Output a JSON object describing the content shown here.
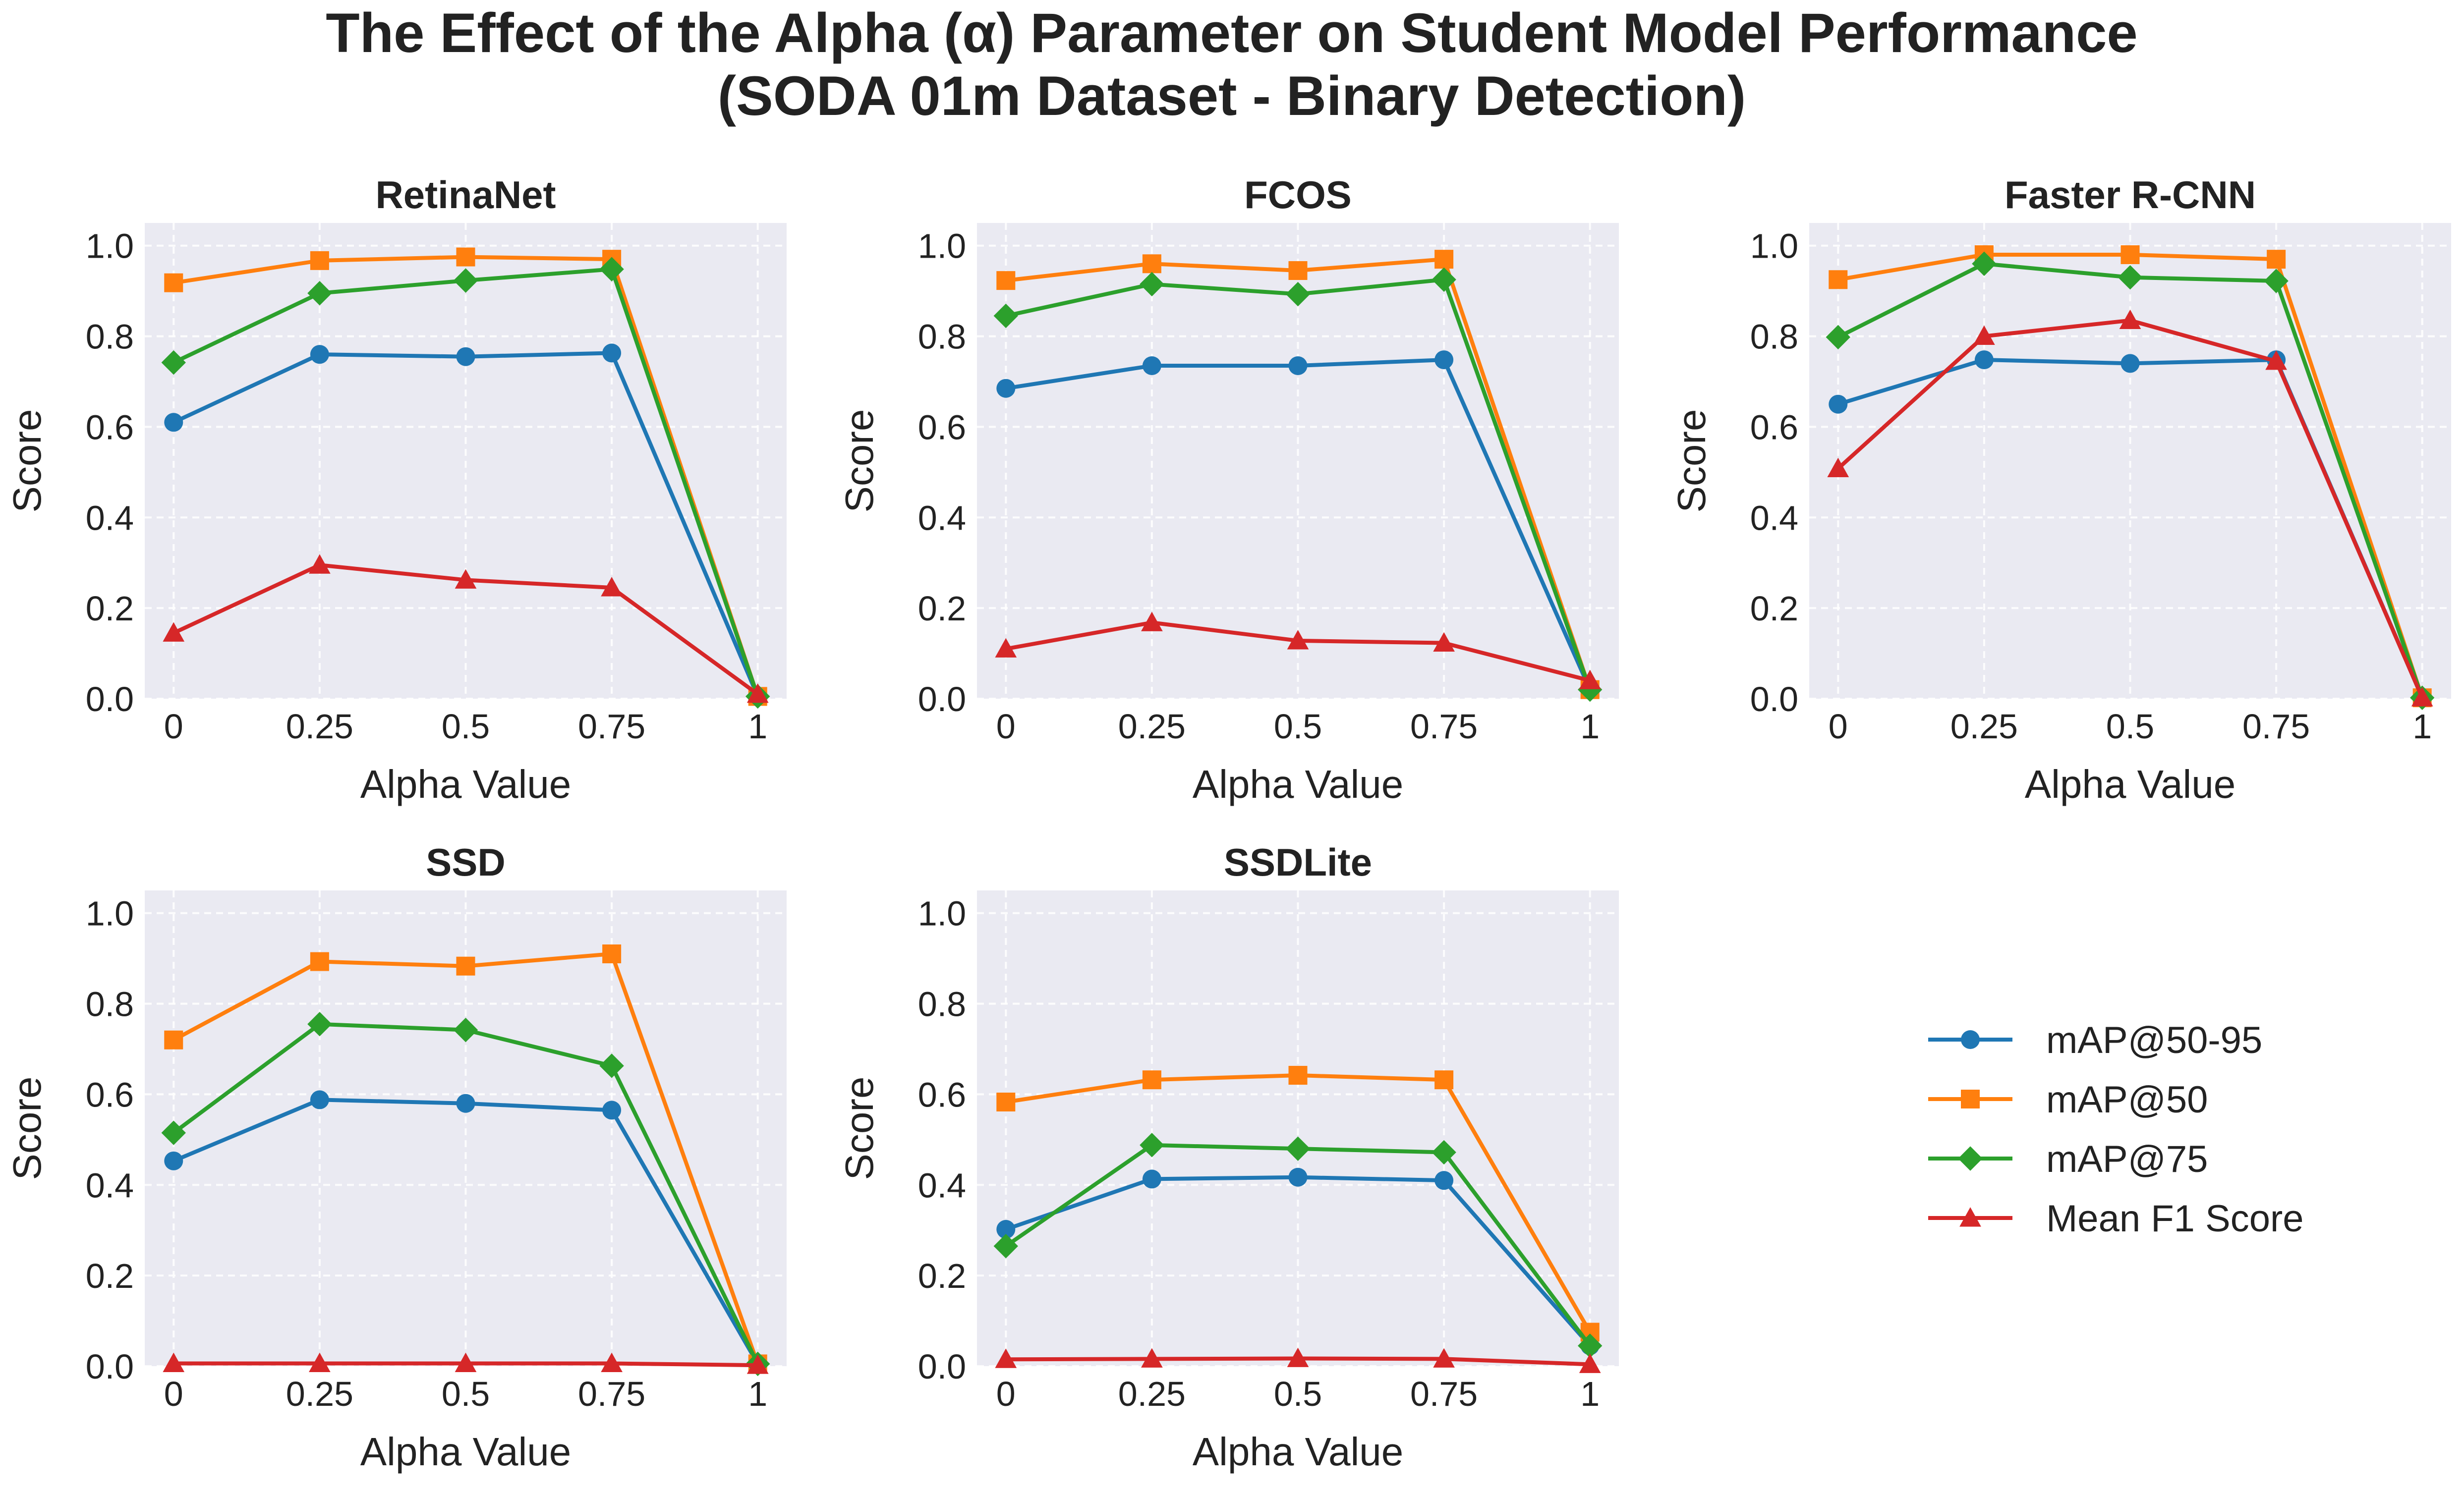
{
  "figure": {
    "title_line1": "The Effect of the Alpha (α) Parameter on Student Model Performance",
    "title_line2": "(SODA 01m Dataset - Binary Detection)"
  },
  "legend": {
    "placement": "right of bottom row",
    "entries": [
      {
        "name": "mAP@50-95",
        "color": "#1f77b4",
        "marker": "circle"
      },
      {
        "name": "mAP@50",
        "color": "#ff7f0e",
        "marker": "square"
      },
      {
        "name": "mAP@75",
        "color": "#2ca02c",
        "marker": "diamond"
      },
      {
        "name": "Mean F1 Score",
        "color": "#d62728",
        "marker": "triangle"
      }
    ]
  },
  "chart_data": [
    {
      "type": "line",
      "title": "RetinaNet",
      "xlabel": "Alpha Value",
      "ylabel": "Score",
      "categories": [
        "0",
        "0.25",
        "0.5",
        "0.75",
        "1"
      ],
      "ylim": [
        0,
        1.05
      ],
      "yticks": [
        "0.0",
        "0.2",
        "0.4",
        "0.6",
        "0.8",
        "1.0"
      ],
      "grid": true,
      "series": [
        {
          "name": "mAP@50-95",
          "values": [
            0.61,
            0.76,
            0.755,
            0.763,
            0.005
          ]
        },
        {
          "name": "mAP@50",
          "values": [
            0.918,
            0.967,
            0.975,
            0.97,
            0.005
          ]
        },
        {
          "name": "mAP@75",
          "values": [
            0.742,
            0.895,
            0.923,
            0.948,
            0.005
          ]
        },
        {
          "name": "Mean F1 Score",
          "values": [
            0.145,
            0.295,
            0.262,
            0.245,
            0.01
          ]
        }
      ]
    },
    {
      "type": "line",
      "title": "FCOS",
      "xlabel": "Alpha Value",
      "ylabel": "Score",
      "categories": [
        "0",
        "0.25",
        "0.5",
        "0.75",
        "1"
      ],
      "ylim": [
        0,
        1.05
      ],
      "yticks": [
        "0.0",
        "0.2",
        "0.4",
        "0.6",
        "0.8",
        "1.0"
      ],
      "grid": true,
      "series": [
        {
          "name": "mAP@50-95",
          "values": [
            0.685,
            0.735,
            0.735,
            0.748,
            0.02
          ]
        },
        {
          "name": "mAP@50",
          "values": [
            0.923,
            0.96,
            0.945,
            0.97,
            0.02
          ]
        },
        {
          "name": "mAP@75",
          "values": [
            0.845,
            0.915,
            0.893,
            0.925,
            0.02
          ]
        },
        {
          "name": "Mean F1 Score",
          "values": [
            0.11,
            0.168,
            0.128,
            0.123,
            0.04
          ]
        }
      ]
    },
    {
      "type": "line",
      "title": "Faster R-CNN",
      "xlabel": "Alpha Value",
      "ylabel": "Score",
      "categories": [
        "0",
        "0.25",
        "0.5",
        "0.75",
        "1"
      ],
      "ylim": [
        0,
        1.05
      ],
      "yticks": [
        "0.0",
        "0.2",
        "0.4",
        "0.6",
        "0.8",
        "1.0"
      ],
      "grid": true,
      "series": [
        {
          "name": "mAP@50-95",
          "values": [
            0.65,
            0.748,
            0.74,
            0.748,
            0.002
          ]
        },
        {
          "name": "mAP@50",
          "values": [
            0.925,
            0.98,
            0.98,
            0.97,
            0.002
          ]
        },
        {
          "name": "mAP@75",
          "values": [
            0.798,
            0.96,
            0.93,
            0.922,
            0.002
          ]
        },
        {
          "name": "Mean F1 Score",
          "values": [
            0.508,
            0.8,
            0.835,
            0.745,
            0.002
          ]
        }
      ]
    },
    {
      "type": "line",
      "title": "SSD",
      "xlabel": "Alpha Value",
      "ylabel": "Score",
      "categories": [
        "0",
        "0.25",
        "0.5",
        "0.75",
        "1"
      ],
      "ylim": [
        0,
        1.05
      ],
      "yticks": [
        "0.0",
        "0.2",
        "0.4",
        "0.6",
        "0.8",
        "1.0"
      ],
      "grid": true,
      "series": [
        {
          "name": "mAP@50-95",
          "values": [
            0.453,
            0.588,
            0.58,
            0.565,
            0.005
          ]
        },
        {
          "name": "mAP@50",
          "values": [
            0.72,
            0.893,
            0.883,
            0.91,
            0.005
          ]
        },
        {
          "name": "mAP@75",
          "values": [
            0.515,
            0.755,
            0.742,
            0.663,
            0.005
          ]
        },
        {
          "name": "Mean F1 Score",
          "values": [
            0.006,
            0.006,
            0.006,
            0.006,
            0.002
          ]
        }
      ]
    },
    {
      "type": "line",
      "title": "SSDLite",
      "xlabel": "Alpha Value",
      "ylabel": "Score",
      "categories": [
        "0",
        "0.25",
        "0.5",
        "0.75",
        "1"
      ],
      "ylim": [
        0,
        1.05
      ],
      "yticks": [
        "0.0",
        "0.2",
        "0.4",
        "0.6",
        "0.8",
        "1.0"
      ],
      "grid": true,
      "series": [
        {
          "name": "mAP@50-95",
          "values": [
            0.302,
            0.413,
            0.417,
            0.41,
            0.045
          ]
        },
        {
          "name": "mAP@50",
          "values": [
            0.583,
            0.632,
            0.642,
            0.632,
            0.075
          ]
        },
        {
          "name": "mAP@75",
          "values": [
            0.265,
            0.488,
            0.48,
            0.472,
            0.045
          ]
        },
        {
          "name": "Mean F1 Score",
          "values": [
            0.015,
            0.016,
            0.017,
            0.016,
            0.004
          ]
        }
      ]
    }
  ]
}
